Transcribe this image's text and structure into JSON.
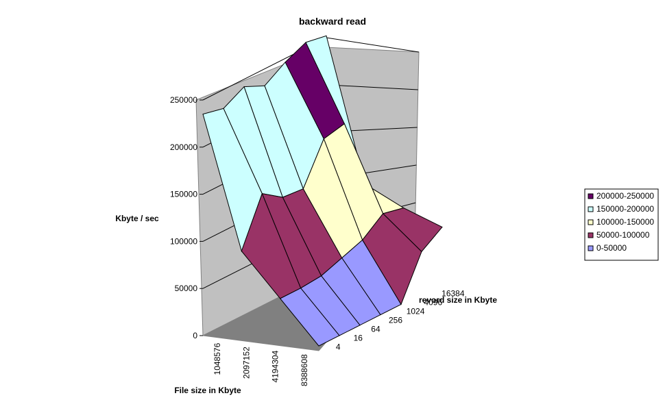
{
  "chart_data": {
    "type": "surface",
    "title": "backward read",
    "zlabel": "Kbyte / sec",
    "xlabel": "File size in Kbyte",
    "ylabel": "revord size in Kbyte",
    "zlim": [
      0,
      250000
    ],
    "z_ticks": [
      "0",
      "50000",
      "100000",
      "150000",
      "200000",
      "250000"
    ],
    "x_ticks": [
      "1048576",
      "2097152",
      "4194304",
      "8388608"
    ],
    "y_ticks": [
      "4",
      "16",
      "64",
      "256",
      "1024",
      "4096",
      "16384"
    ],
    "legend": {
      "placement": "right",
      "bands": [
        {
          "label": "200000-250000",
          "color": "#660066"
        },
        {
          "label": "150000-200000",
          "color": "#CCFFFF"
        },
        {
          "label": "100000-150000",
          "color": "#FFFFCC"
        },
        {
          "label": "50000-100000",
          "color": "#993366"
        },
        {
          "label": "0-50000",
          "color": "#9999FF"
        }
      ]
    },
    "series_description": "rows = file size, columns = record size",
    "values": [
      [
        235000,
        230000,
        242000,
        232000,
        246000,
        256000,
        252000
      ],
      [
        95000,
        145000,
        130000,
        128000,
        170000,
        175000,
        100000
      ],
      [
        50000,
        50000,
        52000,
        60000,
        68000,
        85000,
        80000
      ],
      [
        5000,
        5000,
        5000,
        5000,
        5000,
        50000,
        65000
      ]
    ]
  }
}
